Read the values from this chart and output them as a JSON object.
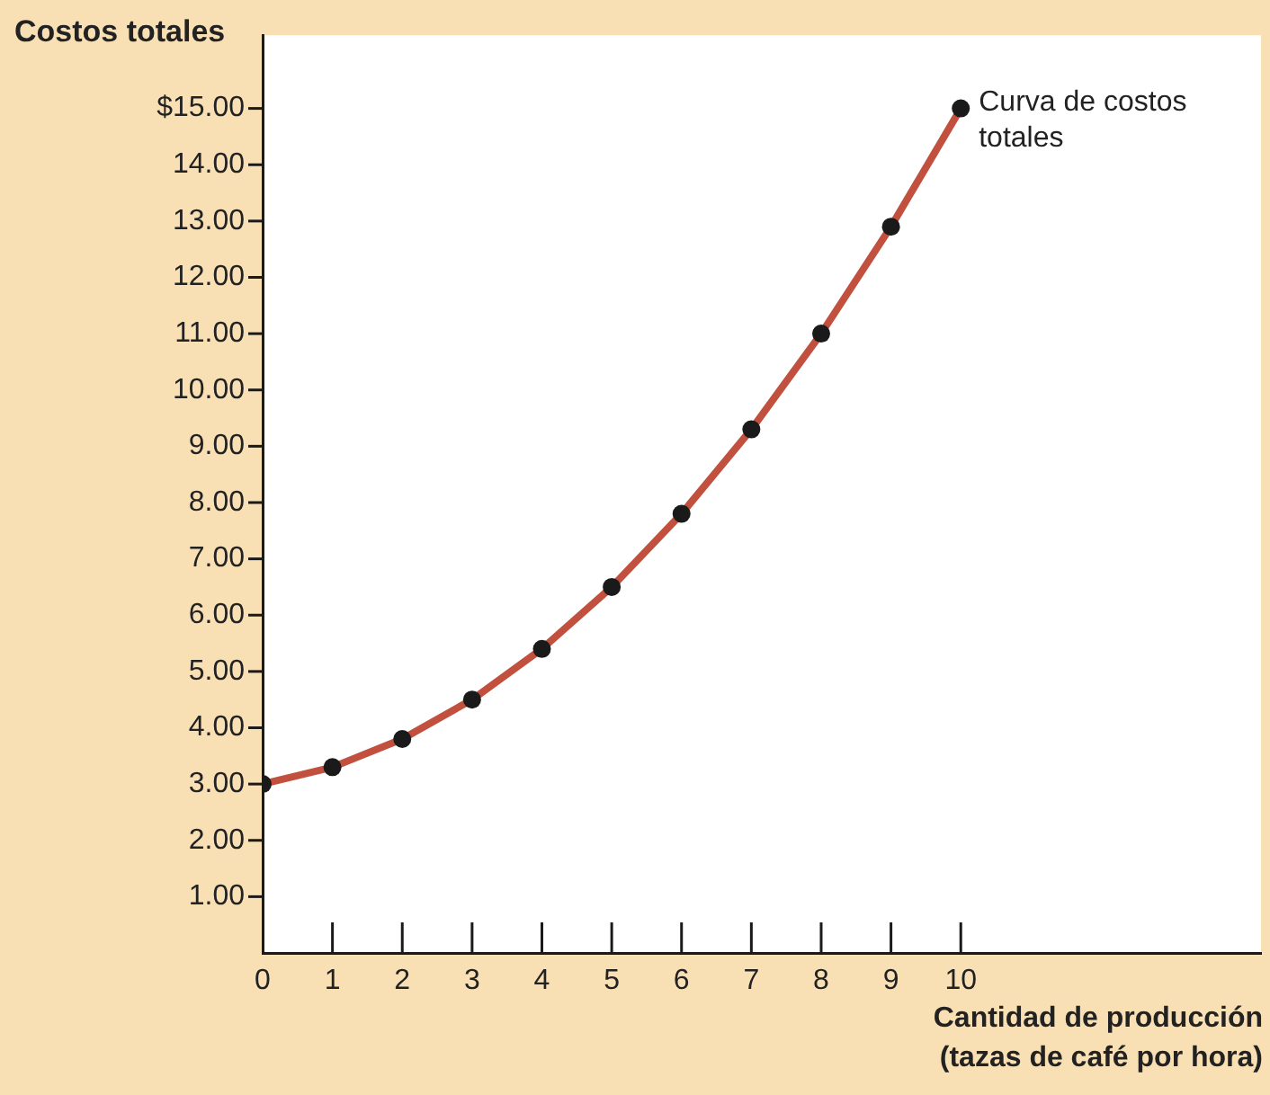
{
  "chart_data": {
    "type": "line",
    "xlabel": "Cantidad de producción (tazas de café por hora)",
    "ylabel": "Costos totales",
    "x": [
      0,
      1,
      2,
      3,
      4,
      5,
      6,
      7,
      8,
      9,
      10
    ],
    "series": [
      {
        "color": "#c1513e",
        "values": [
          3.0,
          3.3,
          3.8,
          4.5,
          5.4,
          6.5,
          7.8,
          9.3,
          11.0,
          12.9,
          15.0
        ]
      }
    ],
    "xlim": [
      0,
      14.3
    ],
    "xticks": [
      0,
      1,
      2,
      3,
      4,
      5,
      6,
      7,
      8,
      9,
      10
    ],
    "ylim": [
      0,
      16.3
    ],
    "yticks": [
      {
        "value": 1,
        "label": "1.00"
      },
      {
        "value": 2,
        "label": "2.00"
      },
      {
        "value": 3,
        "label": "3.00"
      },
      {
        "value": 4,
        "label": "4.00"
      },
      {
        "value": 5,
        "label": "5.00"
      },
      {
        "value": 6,
        "label": "6.00"
      },
      {
        "value": 7,
        "label": "7.00"
      },
      {
        "value": 8,
        "label": "8.00"
      },
      {
        "value": 9,
        "label": "9.00"
      },
      {
        "value": 10,
        "label": "10.00"
      },
      {
        "value": 11,
        "label": "11.00"
      },
      {
        "value": 12,
        "label": "12.00"
      },
      {
        "value": 13,
        "label": "13.00"
      },
      {
        "value": 14,
        "label": "14.00"
      },
      {
        "value": 15,
        "label": "$15.00"
      }
    ],
    "annotations": [
      {
        "text": "Curva de costos totales",
        "x": 10,
        "y": 15
      }
    ],
    "marker": "circle",
    "line_style": "solid",
    "grid": false,
    "legend": false
  }
}
